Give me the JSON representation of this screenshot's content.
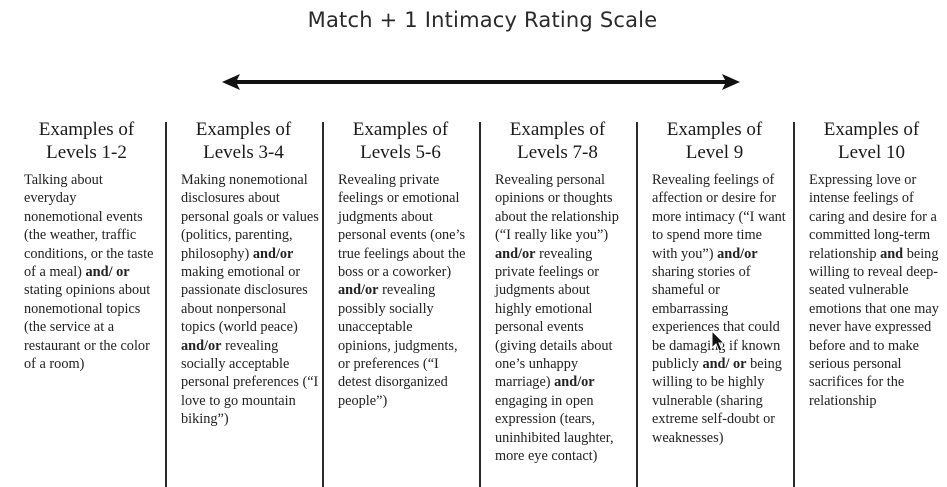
{
  "title": "Match + 1 Intimacy Rating Scale",
  "arrow_icon": "double-headed-arrow",
  "columns": [
    {
      "heading_line1": "Examples of",
      "heading_line2": "Levels 1-2",
      "body": [
        {
          "t": "Talking about everyday nonemotional events (the weather, traffic conditions, or the taste of a meal) ",
          "b": false
        },
        {
          "t": "and/ or",
          "b": true
        },
        {
          "t": " stating opinions about nonemotional topics (the service at a restaurant or the color of a room)",
          "b": false
        }
      ]
    },
    {
      "heading_line1": "Examples of",
      "heading_line2": "Levels 3-4",
      "body": [
        {
          "t": "Making nonemotional disclosures about personal goals or values (politics, parenting, philosophy) ",
          "b": false
        },
        {
          "t": "and/or",
          "b": true
        },
        {
          "t": " making emotional or passionate disclosures about nonpersonal topics (world peace) ",
          "b": false
        },
        {
          "t": "and/or",
          "b": true
        },
        {
          "t": " revealing socially acceptable personal preferences (“I love to go mountain biking”)",
          "b": false
        }
      ]
    },
    {
      "heading_line1": "Examples of",
      "heading_line2": "Levels 5-6",
      "body": [
        {
          "t": "Revealing private feelings or emotional judgments about personal events (one’s true feelings about the boss or a coworker) ",
          "b": false
        },
        {
          "t": "and/or",
          "b": true
        },
        {
          "t": " revealing possibly socially unacceptable opinions, judgments, or preferences (“I detest disorganized people”)",
          "b": false
        }
      ]
    },
    {
      "heading_line1": "Examples of",
      "heading_line2": "Levels 7-8",
      "body": [
        {
          "t": "Revealing personal opinions or thoughts about the relationship (“I really like you”) ",
          "b": false
        },
        {
          "t": "and/or",
          "b": true
        },
        {
          "t": " revealing private feelings or judgments about highly emotional personal events (giving details about one’s unhappy marriage) ",
          "b": false
        },
        {
          "t": "and/or",
          "b": true
        },
        {
          "t": " engaging in open expression (tears, uninhibited laughter, more eye contact)",
          "b": false
        }
      ]
    },
    {
      "heading_line1": "Examples of",
      "heading_line2": "Level 9",
      "body": [
        {
          "t": "Revealing feelings of affection or desire for more intimacy (“I want to spend more time with you”) ",
          "b": false
        },
        {
          "t": "and/or",
          "b": true
        },
        {
          "t": " sharing stories of shameful or embarrassing experiences that could be damaging if known publicly ",
          "b": false
        },
        {
          "t": "and/ or",
          "b": true
        },
        {
          "t": " being willing to be highly vulnerable (sharing extreme self-doubt or weaknesses)",
          "b": false
        }
      ]
    },
    {
      "heading_line1": "Examples of",
      "heading_line2": "Level 10",
      "body": [
        {
          "t": "Expressing love or intense feelings of caring and desire for a committed long-term relationship ",
          "b": false
        },
        {
          "t": "and",
          "b": true
        },
        {
          "t": " being willing to reveal deep-seated vulnerable emotions that one may never have expressed before and to make serious personal sacrifices for the relationship",
          "b": false
        }
      ]
    }
  ],
  "cursor_icon": "mouse-pointer"
}
